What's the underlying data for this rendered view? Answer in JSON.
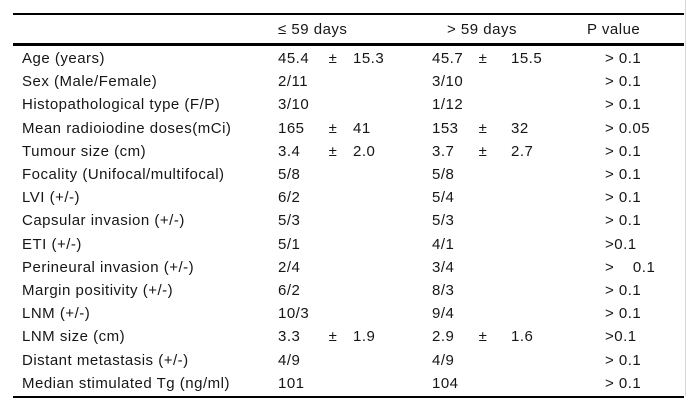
{
  "table": {
    "headers": [
      "≤ 59 days",
      "> 59 days",
      "P value"
    ],
    "plus_minus_symbol": "±",
    "rows": [
      {
        "label": "Age (years)",
        "v1": "45.4",
        "pm1": "±",
        "sd1": "15.3",
        "v2": "45.7",
        "pm2": "±",
        "sd2": "15.5",
        "p": "> 0.1"
      },
      {
        "label": "Sex (Male/Female)",
        "v1": "2/11",
        "pm1": "",
        "sd1": "",
        "v2": "3/10",
        "pm2": "",
        "sd2": "",
        "p": "> 0.1"
      },
      {
        "label": "Histopathological type (F/P)",
        "v1": "3/10",
        "pm1": "",
        "sd1": "",
        "v2": "1/12",
        "pm2": "",
        "sd2": "",
        "p": "> 0.1"
      },
      {
        "label": "Mean radioiodine doses(mCi)",
        "v1": "165",
        "pm1": "±",
        "sd1": "41",
        "v2": "153",
        "pm2": "±",
        "sd2": "32",
        "p": "> 0.05"
      },
      {
        "label": "Tumour size (cm)",
        "v1": "3.4",
        "pm1": "±",
        "sd1": "2.0",
        "v2": "3.7",
        "pm2": "±",
        "sd2": "2.7",
        "p": "> 0.1"
      },
      {
        "label": "Focality (Unifocal/multifocal)",
        "v1": "5/8",
        "pm1": "",
        "sd1": "",
        "v2": "5/8",
        "pm2": "",
        "sd2": "",
        "p": "> 0.1"
      },
      {
        "label": "LVI (+/-)",
        "v1": "6/2",
        "pm1": "",
        "sd1": "",
        "v2": "5/4",
        "pm2": "",
        "sd2": "",
        "p": "> 0.1"
      },
      {
        "label": "Capsular invasion (+/-)",
        "v1": "5/3",
        "pm1": "",
        "sd1": "",
        "v2": "5/3",
        "pm2": "",
        "sd2": "",
        "p": "> 0.1"
      },
      {
        "label": "ETI (+/-)",
        "v1": "5/1",
        "pm1": "",
        "sd1": "",
        "v2": "4/1",
        "pm2": "",
        "sd2": "",
        "p": ">0.1"
      },
      {
        "label": "Perineural invasion (+/-)",
        "v1": "2/4",
        "pm1": "",
        "sd1": "",
        "v2": "3/4",
        "pm2": "",
        "sd2": "",
        "p": ">    0.1"
      },
      {
        "label": "Margin positivity (+/-)",
        "v1": "6/2",
        "pm1": "",
        "sd1": "",
        "v2": "8/3",
        "pm2": "",
        "sd2": "",
        "p": "> 0.1"
      },
      {
        "label": "LNM (+/-)",
        "v1": "10/3",
        "pm1": "",
        "sd1": "",
        "v2": "9/4",
        "pm2": "",
        "sd2": "",
        "p": "> 0.1"
      },
      {
        "label": "LNM size (cm)",
        "v1": "3.3",
        "pm1": "±",
        "sd1": "1.9",
        "v2": "2.9",
        "pm2": "±",
        "sd2": "1.6",
        "p": ">0.1"
      },
      {
        "label": "Distant metastasis (+/-)",
        "v1": "4/9",
        "pm1": "",
        "sd1": "",
        "v2": "4/9",
        "pm2": "",
        "sd2": "",
        "p": "> 0.1"
      },
      {
        "label": "Median stimulated Tg (ng/ml)",
        "v1": "101",
        "pm1": "",
        "sd1": "",
        "v2": "104",
        "pm2": "",
        "sd2": "",
        "p": "> 0.1"
      }
    ],
    "colors": {
      "text": "#161616",
      "border": "#000000",
      "guide_line": "#d6d6d6",
      "background": "#ffffff"
    }
  }
}
